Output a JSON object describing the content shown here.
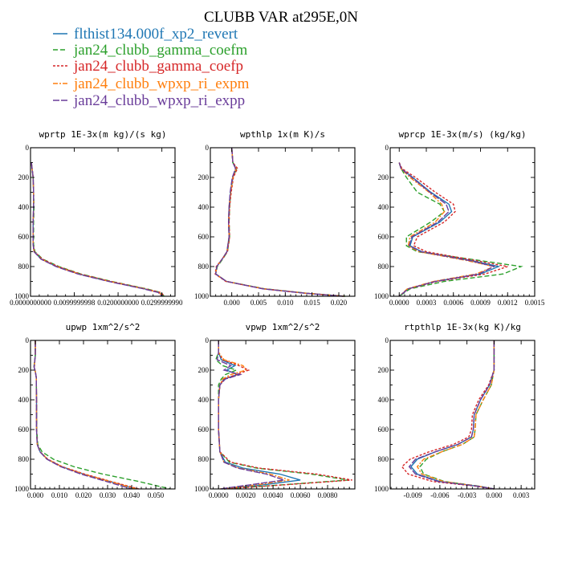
{
  "figure": {
    "title": "CLUBB VAR at295E,0N"
  },
  "legend": [
    {
      "name": "flthist134.000f_xp2_revert",
      "color": "#1f77b4",
      "dash": ""
    },
    {
      "name": "jan24_clubb_gamma_coefm",
      "color": "#2ca02c",
      "dash": "6,3"
    },
    {
      "name": "jan24_clubb_gamma_coefp",
      "color": "#d62728",
      "dash": "3,2"
    },
    {
      "name": "jan24_clubb_wpxp_ri_expm",
      "color": "#ff7f0e",
      "dash": "6,2,2,2"
    },
    {
      "name": "jan24_clubb_wpxp_ri_expp",
      "color": "#6a3d9a",
      "dash": "8,2"
    }
  ],
  "chart_data": [
    {
      "type": "line",
      "title": "wprtp  1E-3x(m kg)/(s kg)",
      "xlim": [
        0,
        0.033
      ],
      "ylim": [
        1000,
        0
      ],
      "xticks": [
        0,
        0.01,
        0.02,
        0.03
      ],
      "xtick_labels": [
        "0.0000000000",
        "0.0099999998",
        "0.0200000000",
        "0.0299999990"
      ],
      "yticks": [
        0,
        200,
        400,
        600,
        800,
        1000
      ],
      "ytick_labels": [
        "0",
        "200",
        "400",
        "600",
        "800",
        "1000"
      ],
      "y": [
        100,
        150,
        200,
        300,
        400,
        500,
        600,
        650,
        700,
        750,
        800,
        850,
        900,
        950,
        975,
        1000
      ],
      "series": [
        {
          "name": "flthist134.000f_xp2_revert",
          "x": [
            0.0002,
            0.0004,
            0.0006,
            0.0007,
            0.0007,
            0.0006,
            0.0006,
            0.0006,
            0.0008,
            0.0025,
            0.006,
            0.011,
            0.018,
            0.026,
            0.0295,
            0.0302
          ]
        },
        {
          "name": "jan24_clubb_gamma_coefm",
          "x": [
            0.0002,
            0.0004,
            0.0006,
            0.0007,
            0.0008,
            0.0007,
            0.0007,
            0.0007,
            0.001,
            0.0028,
            0.0065,
            0.0115,
            0.0185,
            0.0265,
            0.0298,
            0.0305
          ]
        },
        {
          "name": "jan24_clubb_gamma_coefp",
          "x": [
            0.0002,
            0.0004,
            0.0006,
            0.0007,
            0.0007,
            0.0006,
            0.0006,
            0.0006,
            0.0009,
            0.0027,
            0.0063,
            0.0113,
            0.0183,
            0.0262,
            0.0298,
            0.0306
          ]
        },
        {
          "name": "jan24_clubb_wpxp_ri_expm",
          "x": [
            0.0002,
            0.0004,
            0.0006,
            0.0007,
            0.0007,
            0.0006,
            0.0006,
            0.0006,
            0.0008,
            0.0025,
            0.006,
            0.011,
            0.018,
            0.026,
            0.0294,
            0.0301
          ]
        },
        {
          "name": "jan24_clubb_wpxp_ri_expp",
          "x": [
            0.0002,
            0.0004,
            0.0006,
            0.0007,
            0.0007,
            0.0006,
            0.0006,
            0.0006,
            0.0008,
            0.0024,
            0.0058,
            0.0108,
            0.0178,
            0.0258,
            0.0292,
            0.03
          ]
        }
      ]
    },
    {
      "type": "line",
      "title": "wpthlp  1x(m K)/s",
      "xlim": [
        -0.004,
        0.023
      ],
      "ylim": [
        1000,
        0
      ],
      "xticks": [
        0,
        0.005,
        0.01,
        0.015,
        0.02
      ],
      "xtick_labels": [
        "0.000",
        "0.005",
        "0.010",
        "0.015",
        "0.020"
      ],
      "yticks": [
        0,
        200,
        400,
        600,
        800,
        1000
      ],
      "ytick_labels": [
        "0",
        "200",
        "400",
        "600",
        "800",
        "1000"
      ],
      "y": [
        0,
        100,
        140,
        160,
        200,
        300,
        400,
        500,
        600,
        700,
        750,
        800,
        850,
        900,
        950,
        980,
        1000
      ],
      "series": [
        {
          "name": "flthist134.000f_xp2_revert",
          "x": [
            0,
            0.0002,
            0.0008,
            0.0006,
            0.0002,
            -0.0002,
            -0.0005,
            -0.0006,
            -0.0005,
            -0.0009,
            -0.0018,
            -0.0028,
            -0.003,
            -0.001,
            0.006,
            0.014,
            0.021
          ]
        },
        {
          "name": "jan24_clubb_gamma_coefm",
          "x": [
            0,
            0.0002,
            0.0009,
            0.0007,
            0.0002,
            -0.0002,
            -0.0004,
            -0.0005,
            -0.0004,
            -0.0008,
            -0.0017,
            -0.0027,
            -0.003,
            -0.001,
            0.0062,
            0.0142,
            0.0212
          ]
        },
        {
          "name": "jan24_clubb_gamma_coefp",
          "x": [
            0,
            0.0002,
            0.0011,
            0.0008,
            0.0003,
            -0.0001,
            -0.0004,
            -0.0005,
            -0.0004,
            -0.0008,
            -0.0018,
            -0.0029,
            -0.0031,
            -0.0011,
            0.0059,
            0.0139,
            0.0209
          ]
        },
        {
          "name": "jan24_clubb_wpxp_ri_expm",
          "x": [
            0,
            0.0002,
            0.0008,
            0.0006,
            0.0002,
            -0.0002,
            -0.0005,
            -0.0006,
            -0.0005,
            -0.0009,
            -0.0018,
            -0.0028,
            -0.003,
            -0.001,
            0.006,
            0.014,
            0.021
          ]
        },
        {
          "name": "jan24_clubb_wpxp_ri_expp",
          "x": [
            0,
            0.0002,
            0.0007,
            0.0005,
            0.0001,
            -0.0003,
            -0.0005,
            -0.0006,
            -0.0005,
            -0.0009,
            -0.0018,
            -0.0028,
            -0.003,
            -0.001,
            0.0058,
            0.0138,
            0.0208
          ]
        }
      ]
    },
    {
      "type": "line",
      "title": "wprcp  1E-3x(m/s) (kg/kg)",
      "xlim": [
        -0.0001,
        0.0015
      ],
      "ylim": [
        1000,
        0
      ],
      "xticks": [
        0,
        0.0003,
        0.0006,
        0.0009,
        0.0012,
        0.0015
      ],
      "xtick_labels": [
        "0.0000",
        "0.0003",
        "0.0006",
        "0.0009",
        "0.0012",
        "0.0015"
      ],
      "yticks": [
        0,
        200,
        400,
        600,
        800,
        1000
      ],
      "ytick_labels": [
        "0",
        "200",
        "400",
        "600",
        "800",
        "1000"
      ],
      "y": [
        100,
        140,
        200,
        300,
        380,
        430,
        500,
        600,
        660,
        700,
        760,
        800,
        850,
        900,
        950,
        1000
      ],
      "series": [
        {
          "name": "flthist134.000f_xp2_revert",
          "x": [
            0,
            2e-05,
            0.00015,
            0.00035,
            0.00055,
            0.00058,
            0.00045,
            0.00015,
            0.00012,
            0.00025,
            0.0008,
            0.0011,
            0.0009,
            0.0004,
            0.0001,
            0
          ]
        },
        {
          "name": "jan24_clubb_gamma_coefm",
          "x": [
            0,
            2e-05,
            8e-05,
            0.0002,
            0.00045,
            0.0005,
            0.00035,
            8e-05,
            8e-05,
            0.0002,
            0.0009,
            0.00135,
            0.00115,
            0.0005,
            0.00012,
            0
          ]
        },
        {
          "name": "jan24_clubb_gamma_coefp",
          "x": [
            0,
            3e-05,
            0.00018,
            0.0004,
            0.0006,
            0.00062,
            0.0005,
            0.0002,
            0.00016,
            0.0003,
            0.00085,
            0.0012,
            0.00095,
            0.00042,
            0.0001,
            0
          ]
        },
        {
          "name": "jan24_clubb_wpxp_ri_expm",
          "x": [
            0,
            2e-05,
            0.00012,
            0.00033,
            0.00047,
            0.0005,
            0.0004,
            0.00012,
            0.0001,
            0.00022,
            0.00075,
            0.00105,
            0.00085,
            0.00038,
            9e-05,
            0
          ]
        },
        {
          "name": "jan24_clubb_wpxp_ri_expp",
          "x": [
            0,
            2e-05,
            0.00014,
            0.00034,
            0.00052,
            0.00055,
            0.00043,
            0.00014,
            0.00011,
            0.00024,
            0.00078,
            0.00105,
            0.00088,
            0.0004,
            0.0001,
            0
          ]
        }
      ]
    },
    {
      "type": "line",
      "title": "upwp  1xm^2/s^2",
      "xlim": [
        -0.002,
        0.058
      ],
      "ylim": [
        1000,
        0
      ],
      "xticks": [
        0,
        0.01,
        0.02,
        0.03,
        0.04,
        0.05
      ],
      "xtick_labels": [
        "0.000",
        "0.010",
        "0.020",
        "0.030",
        "0.040",
        "0.050"
      ],
      "yticks": [
        0,
        200,
        400,
        600,
        800,
        1000
      ],
      "ytick_labels": [
        "0",
        "200",
        "400",
        "600",
        "800",
        "1000"
      ],
      "y": [
        0,
        100,
        180,
        210,
        250,
        400,
        600,
        700,
        750,
        800,
        850,
        900,
        950,
        1000
      ],
      "series": [
        {
          "name": "flthist134.000f_xp2_revert",
          "x": [
            0,
            0,
            -0.0005,
            0,
            0.0004,
            0.0005,
            0.0005,
            0.0008,
            0.002,
            0.005,
            0.011,
            0.02,
            0.031,
            0.042
          ]
        },
        {
          "name": "jan24_clubb_gamma_coefm",
          "x": [
            0,
            0,
            -0.0006,
            0,
            0.0004,
            0.0005,
            0.0006,
            0.001,
            0.0028,
            0.0075,
            0.016,
            0.028,
            0.043,
            0.056
          ]
        },
        {
          "name": "jan24_clubb_gamma_coefp",
          "x": [
            0,
            0,
            -0.0004,
            0,
            0.0004,
            0.0005,
            0.0005,
            0.0008,
            0.002,
            0.0052,
            0.0112,
            0.0205,
            0.0315,
            0.043
          ]
        },
        {
          "name": "jan24_clubb_wpxp_ri_expm",
          "x": [
            0,
            0,
            -0.0005,
            0,
            0.0004,
            0.0005,
            0.0005,
            0.0008,
            0.002,
            0.005,
            0.011,
            0.02,
            0.031,
            0.042
          ]
        },
        {
          "name": "jan24_clubb_wpxp_ri_expp",
          "x": [
            0,
            0,
            -0.0005,
            0,
            0.0004,
            0.0005,
            0.0005,
            0.0008,
            0.0019,
            0.0048,
            0.0105,
            0.019,
            0.0295,
            0.04
          ]
        }
      ]
    },
    {
      "type": "line",
      "title": "vpwp  1xm^2/s^2",
      "xlim": [
        -0.0006,
        0.01
      ],
      "ylim": [
        1000,
        0
      ],
      "xticks": [
        0,
        0.002,
        0.004,
        0.006,
        0.008
      ],
      "xtick_labels": [
        "0.0000",
        "0.0020",
        "0.0040",
        "0.0060",
        "0.0080"
      ],
      "yticks": [
        0,
        200,
        400,
        600,
        800,
        1000
      ],
      "ytick_labels": [
        "0",
        "200",
        "400",
        "600",
        "800",
        "1000"
      ],
      "y": [
        0,
        80,
        130,
        170,
        200,
        230,
        260,
        300,
        400,
        600,
        750,
        820,
        860,
        900,
        940,
        970,
        1000
      ],
      "series": [
        {
          "name": "flthist134.000f_xp2_revert",
          "x": [
            0,
            0,
            0.0002,
            0.0012,
            0.0006,
            0.0014,
            0.0004,
            0.0001,
            0,
            0,
            0.0001,
            0.0005,
            0.0018,
            0.0045,
            0.006,
            0.0035,
            0.0002
          ]
        },
        {
          "name": "jan24_clubb_gamma_coefm",
          "x": [
            0,
            0,
            -0.0002,
            0.0003,
            0.0013,
            0.0005,
            0.0002,
            0,
            0,
            0,
            0.0001,
            0.0008,
            0.0028,
            0.0068,
            0.0095,
            0.005,
            0.0004
          ]
        },
        {
          "name": "jan24_clubb_gamma_coefp",
          "x": [
            0,
            0,
            0.0003,
            0.0015,
            0.0022,
            0.0013,
            0.0004,
            0.0001,
            0,
            0,
            0.0001,
            0.0009,
            0.003,
            0.0072,
            0.0098,
            0.0052,
            0.0004
          ]
        },
        {
          "name": "jan24_clubb_wpxp_ri_expm",
          "x": [
            0,
            0,
            0.0004,
            0.0018,
            0.002,
            0.0009,
            0.0003,
            0.0001,
            0,
            0,
            0.0001,
            0.0004,
            0.0015,
            0.0038,
            0.0052,
            0.003,
            0.0001
          ]
        },
        {
          "name": "jan24_clubb_wpxp_ri_expp",
          "x": [
            0,
            0,
            -0.0001,
            0.0009,
            0.0004,
            0.0016,
            0.0005,
            0.0001,
            0,
            0,
            0.0001,
            0.0004,
            0.0014,
            0.0035,
            0.0048,
            0.0025,
            0.0001
          ]
        }
      ]
    },
    {
      "type": "line",
      "title": "rtpthlp  1E-3x(kg K)/kg",
      "xlim": [
        -0.0115,
        0.0045
      ],
      "ylim": [
        1000,
        0
      ],
      "xticks": [
        -0.009,
        -0.006,
        -0.003,
        0,
        0.003
      ],
      "xtick_labels": [
        "-0.009",
        "-0.006",
        "-0.003",
        "0.000",
        "0.003"
      ],
      "yticks": [
        0,
        200,
        400,
        600,
        800,
        1000
      ],
      "ytick_labels": [
        "0",
        "200",
        "400",
        "600",
        "800",
        "1000"
      ],
      "y": [
        0,
        200,
        300,
        400,
        500,
        600,
        650,
        700,
        750,
        800,
        850,
        900,
        950,
        980,
        1000
      ],
      "series": [
        {
          "name": "flthist134.000f_xp2_revert",
          "x": [
            0,
            0,
            -0.0005,
            -0.0015,
            -0.0022,
            -0.0023,
            -0.0025,
            -0.004,
            -0.0065,
            -0.0085,
            -0.0092,
            -0.0085,
            -0.006,
            -0.002,
            0
          ]
        },
        {
          "name": "jan24_clubb_gamma_coefm",
          "x": [
            0,
            0,
            -0.0003,
            -0.0012,
            -0.002,
            -0.0021,
            -0.0022,
            -0.0035,
            -0.0058,
            -0.0075,
            -0.0082,
            -0.0078,
            -0.0055,
            -0.0018,
            0
          ]
        },
        {
          "name": "jan24_clubb_gamma_coefp",
          "x": [
            0,
            0,
            -0.0006,
            -0.0017,
            -0.0024,
            -0.0025,
            -0.0028,
            -0.0045,
            -0.0072,
            -0.0093,
            -0.0102,
            -0.0095,
            -0.0068,
            -0.0022,
            0
          ]
        },
        {
          "name": "jan24_clubb_wpxp_ri_expm",
          "x": [
            0,
            0,
            -0.0003,
            -0.0012,
            -0.002,
            -0.0021,
            -0.0022,
            -0.0035,
            -0.0058,
            -0.0078,
            -0.0085,
            -0.008,
            -0.0056,
            -0.0019,
            0
          ]
        },
        {
          "name": "jan24_clubb_wpxp_ri_expp",
          "x": [
            0,
            0,
            -0.0005,
            -0.0015,
            -0.0022,
            -0.0023,
            -0.0025,
            -0.004,
            -0.0065,
            -0.0087,
            -0.0094,
            -0.0087,
            -0.0062,
            -0.002,
            0
          ]
        }
      ]
    }
  ]
}
